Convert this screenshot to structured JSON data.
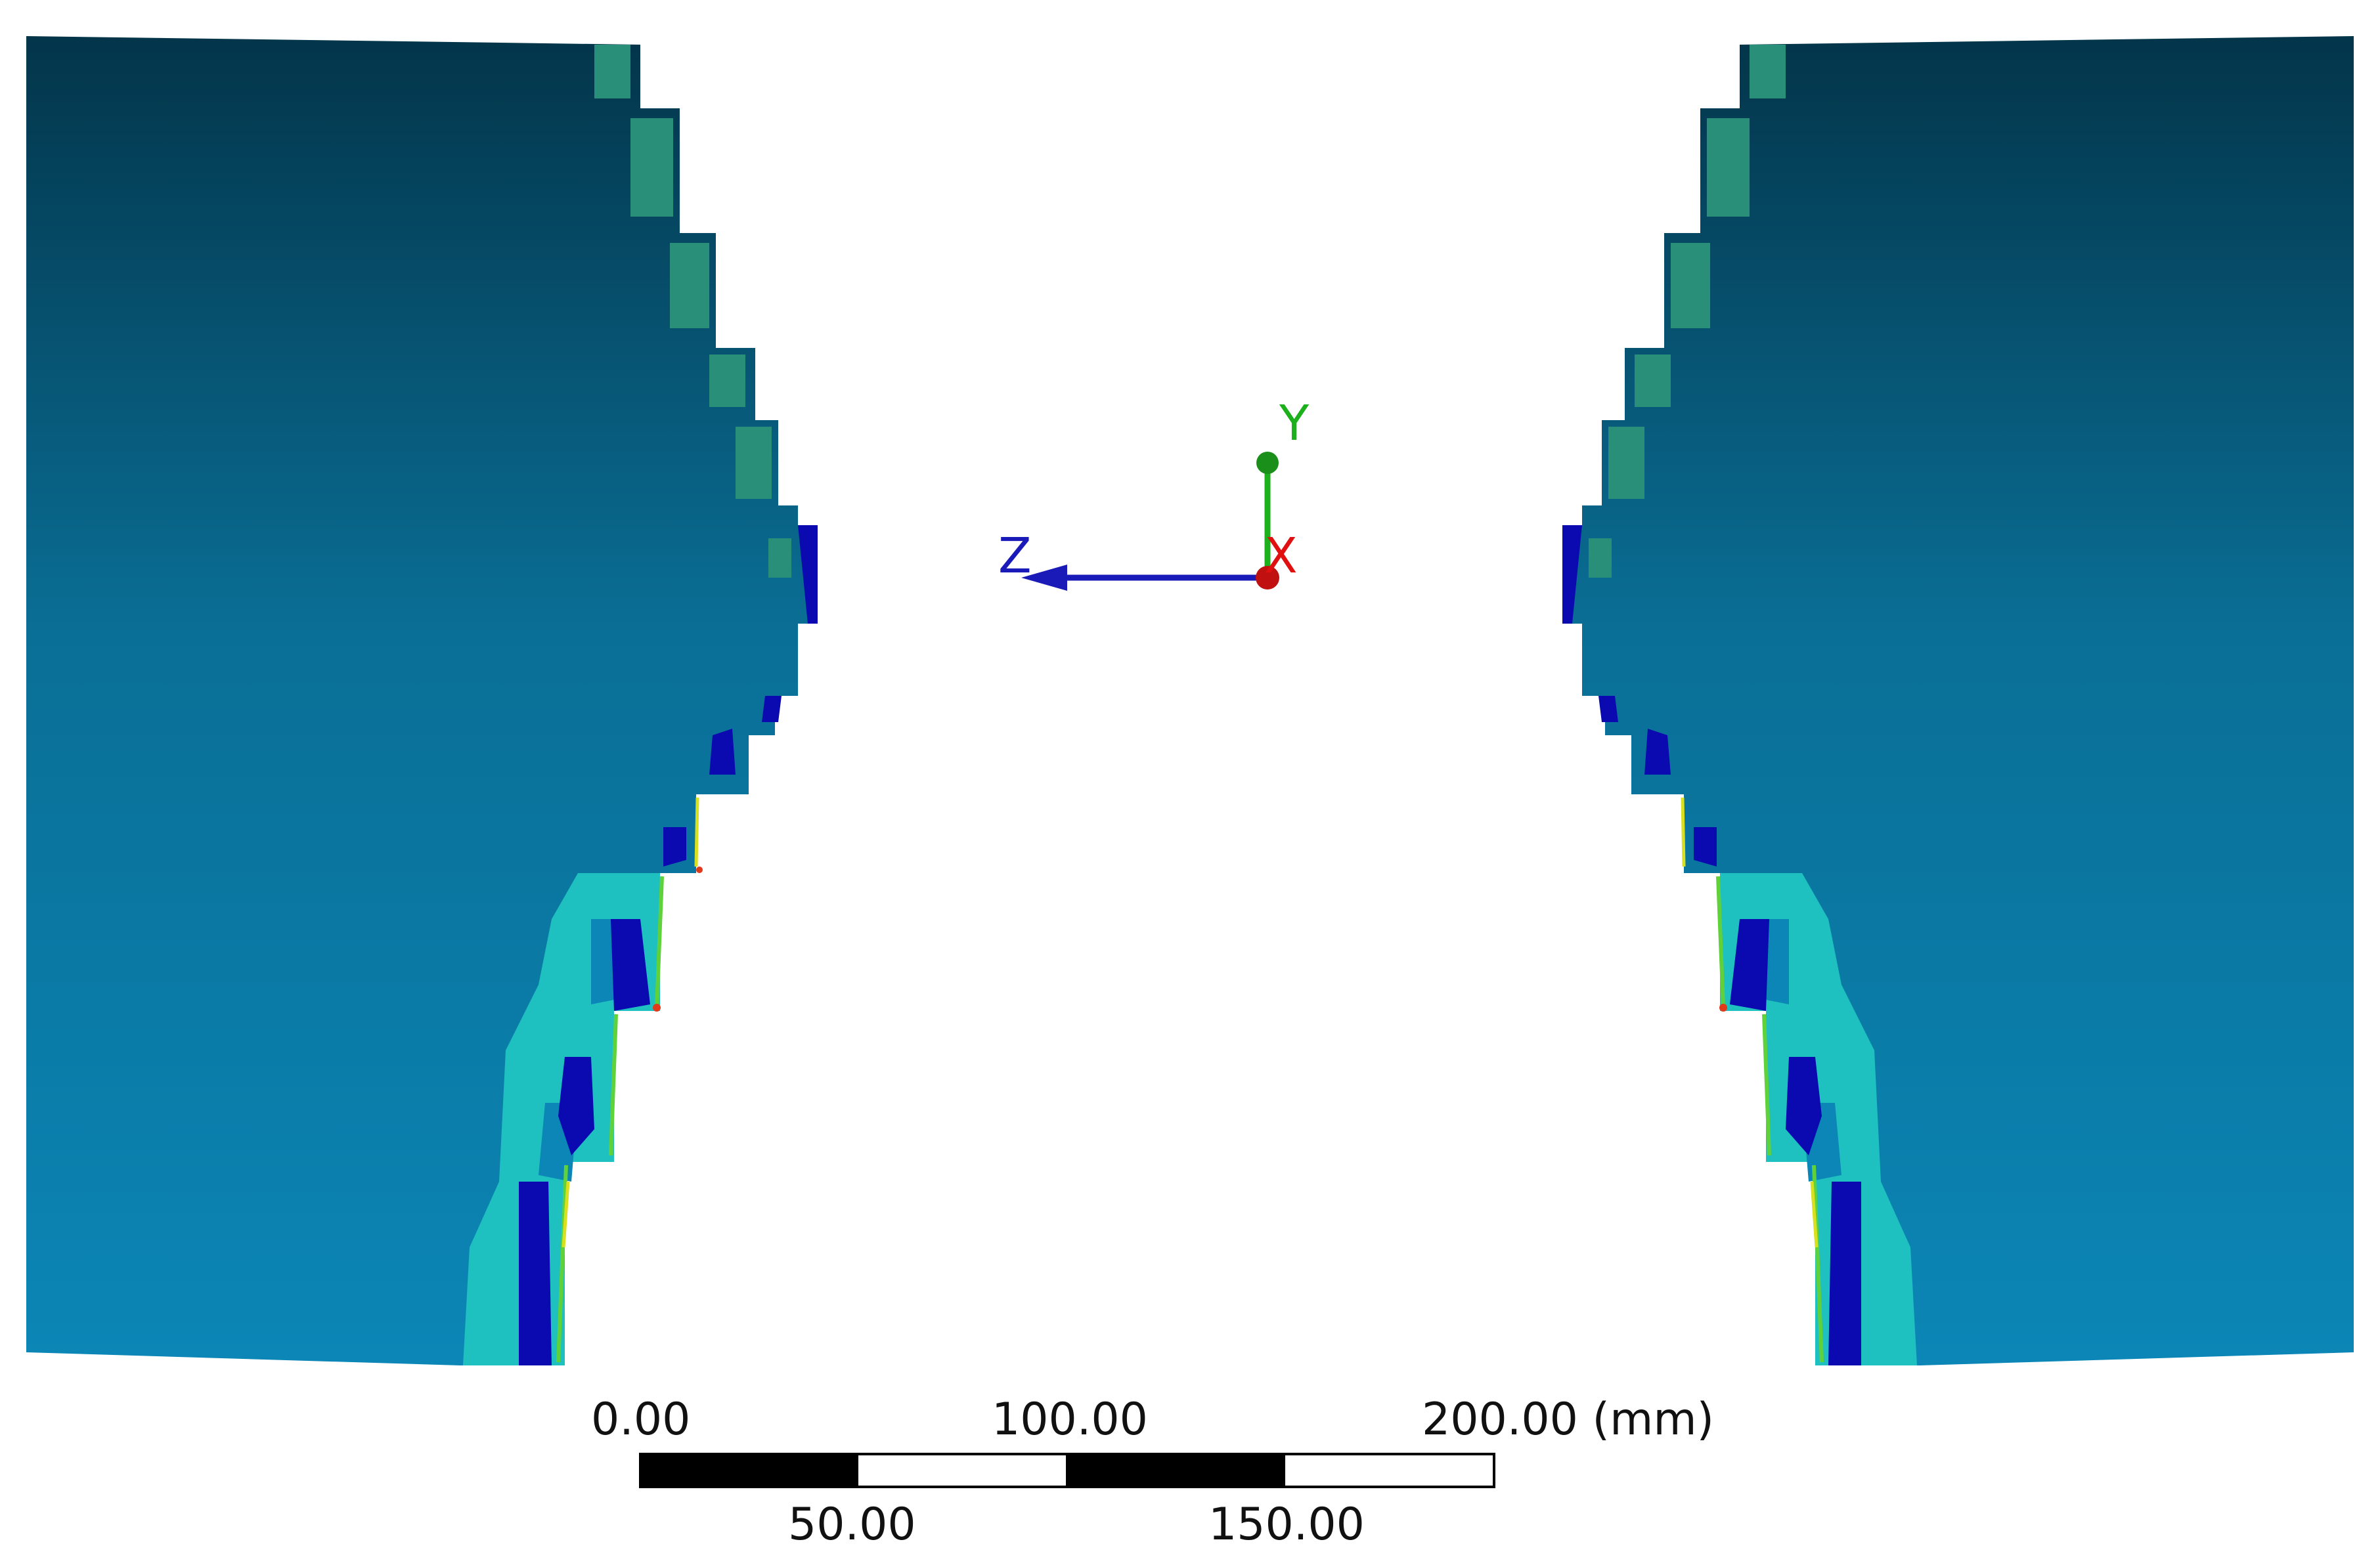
{
  "triad": {
    "y_label": "Y",
    "x_label": "X",
    "z_label": "Z",
    "y_color": "#1db01d",
    "x_color": "#e01010",
    "z_color": "#1a1ab8"
  },
  "scale_bar": {
    "top_labels": [
      "0.00",
      "100.00",
      "200.00 (mm)"
    ],
    "bottom_labels": [
      "50.00",
      "150.00"
    ],
    "segment_colors": [
      "#000000",
      "#ffffff",
      "#000000",
      "#ffffff"
    ]
  },
  "contour_colors": {
    "dark_top": "#03354a",
    "mid": "#0a6f96",
    "bottom": "#0b86b6",
    "low_band": "#0a0ab0",
    "cyan_band": "#1fc0c0",
    "green_band": "#35c280",
    "edge_green": "#5fd23b",
    "edge_yellow": "#d8e020",
    "edge_red": "#e03a1a"
  }
}
